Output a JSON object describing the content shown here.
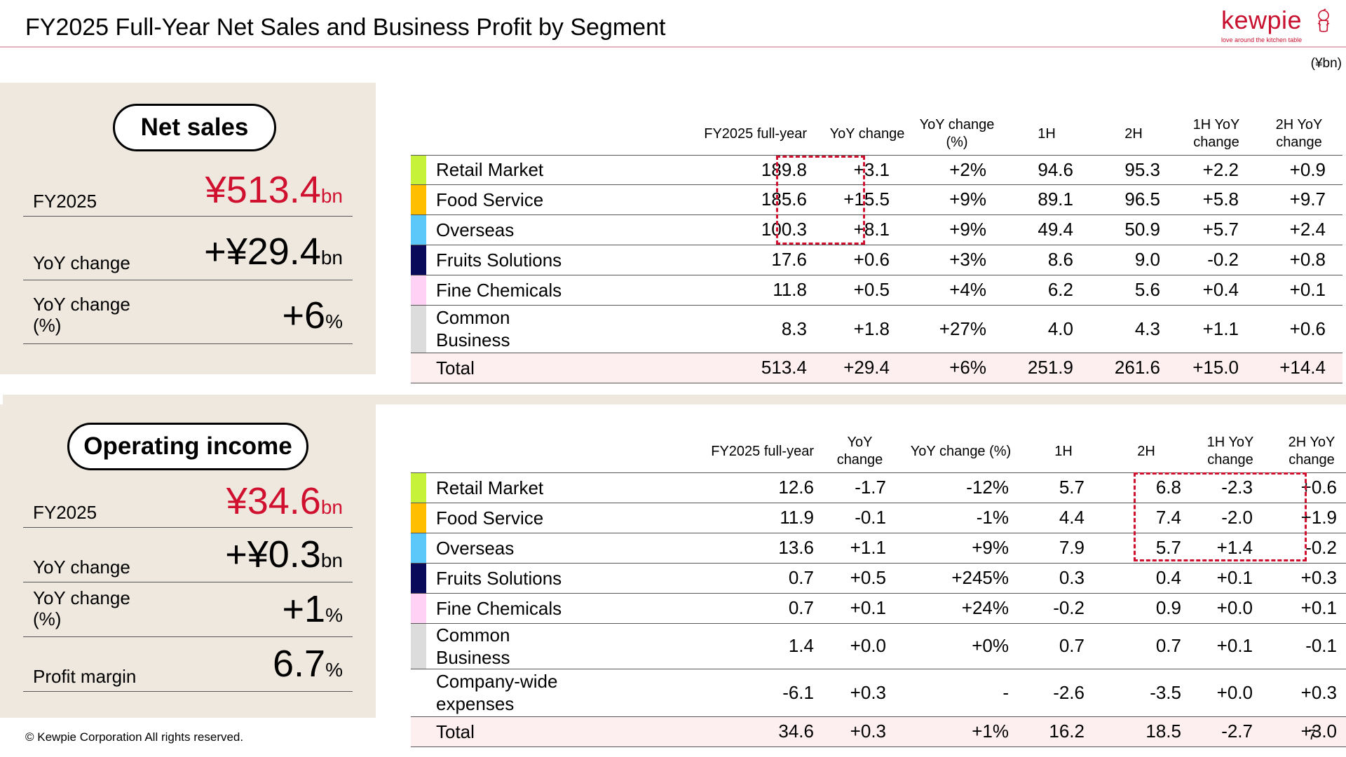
{
  "header": {
    "title": "FY2025 Full-Year Net Sales and Business Profit by Segment",
    "logo_word": "kewpie",
    "logo_tagline": "love around the kitchen table",
    "unit": "(¥bn)"
  },
  "colors": {
    "accent": "#d0102f",
    "panel_bg": "#efe8df",
    "total_row_bg": "#fdeef0",
    "segments": {
      "retail_market": "#c6f23a",
      "food_service": "#ffbf00",
      "overseas": "#5cc8fa",
      "fruits_solutions": "#0a0a5a",
      "fine_chemicals": "#ffd2f5",
      "common_business": "#dcdcdc"
    }
  },
  "net_sales": {
    "pill_label": "Net sales",
    "kpis": [
      {
        "label": "FY2025",
        "value": "¥513.4",
        "unit": "bn"
      },
      {
        "label": "YoY change",
        "value": "+¥29.4",
        "unit": "bn"
      },
      {
        "label": "YoY change\n(%)",
        "value": "+6",
        "unit": "%"
      }
    ],
    "headers": [
      "FY2025 full-year",
      "YoY change",
      "YoY change\n(%)",
      "1H",
      "2H",
      "1H YoY\nchange",
      "2H YoY\nchange"
    ],
    "rows": [
      {
        "name": "Retail Market",
        "cells": [
          "189.8",
          "+3.1",
          "+2%",
          "94.6",
          "95.3",
          "+2.2",
          "+0.9"
        ]
      },
      {
        "name": "Food Service",
        "cells": [
          "185.6",
          "+15.5",
          "+9%",
          "89.1",
          "96.5",
          "+5.8",
          "+9.7"
        ]
      },
      {
        "name": "Overseas",
        "cells": [
          "100.3",
          "+8.1",
          "+9%",
          "49.4",
          "50.9",
          "+5.7",
          "+2.4"
        ]
      },
      {
        "name": "Fruits Solutions",
        "cells": [
          "17.6",
          "+0.6",
          "+3%",
          "8.6",
          "9.0",
          "-0.2",
          "+0.8"
        ]
      },
      {
        "name": "Fine Chemicals",
        "cells": [
          "11.8",
          "+0.5",
          "+4%",
          "6.2",
          "5.6",
          "+0.4",
          "+0.1"
        ]
      },
      {
        "name": "Common\nBusiness",
        "cells": [
          "8.3",
          "+1.8",
          "+27%",
          "4.0",
          "4.3",
          "+1.1",
          "+0.6"
        ]
      },
      {
        "name": "Total",
        "cells": [
          "513.4",
          "+29.4",
          "+6%",
          "251.9",
          "261.6",
          "+15.0",
          "+14.4"
        ]
      }
    ]
  },
  "operating_income": {
    "pill_label": "Operating income",
    "kpis": [
      {
        "label": "FY2025",
        "value": "¥34.6",
        "unit": "bn"
      },
      {
        "label": "YoY change",
        "value": "+¥0.3",
        "unit": "bn"
      },
      {
        "label": "YoY change\n(%)",
        "value": "+1",
        "unit": "%"
      },
      {
        "label": "Profit margin",
        "value": "6.7",
        "unit": "%"
      }
    ],
    "headers": [
      "FY2025 full-year",
      "YoY\nchange",
      "YoY change (%)",
      "1H",
      "2H",
      "1H YoY\nchange",
      "2H YoY\nchange"
    ],
    "rows": [
      {
        "name": "Retail Market",
        "cells": [
          "12.6",
          "-1.7",
          "-12%",
          "5.7",
          "6.8",
          "-2.3",
          "+0.6"
        ]
      },
      {
        "name": "Food Service",
        "cells": [
          "11.9",
          "-0.1",
          "-1%",
          "4.4",
          "7.4",
          "-2.0",
          "+1.9"
        ]
      },
      {
        "name": "Overseas",
        "cells": [
          "13.6",
          "+1.1",
          "+9%",
          "7.9",
          "5.7",
          "+1.4",
          "-0.2"
        ]
      },
      {
        "name": "Fruits Solutions",
        "cells": [
          "0.7",
          "+0.5",
          "+245%",
          "0.3",
          "0.4",
          "+0.1",
          "+0.3"
        ]
      },
      {
        "name": "Fine Chemicals",
        "cells": [
          "0.7",
          "+0.1",
          "+24%",
          "-0.2",
          "0.9",
          "+0.0",
          "+0.1"
        ]
      },
      {
        "name": "Common Business",
        "cells": [
          "1.4",
          "+0.0",
          "+0%",
          "0.7",
          "0.7",
          "+0.1",
          "-0.1"
        ]
      },
      {
        "name": "Company-wide\nexpenses",
        "cells": [
          "-6.1",
          "+0.3",
          "-",
          "-2.6",
          "-3.5",
          "+0.0",
          "+0.3"
        ]
      },
      {
        "name": "Total",
        "cells": [
          "34.6",
          "+0.3",
          "+1%",
          "16.2",
          "18.5",
          "-2.7",
          "+3.0"
        ]
      }
    ]
  },
  "footer": {
    "copyright": "© Kewpie Corporation All rights reserved.",
    "page_number": "7"
  }
}
